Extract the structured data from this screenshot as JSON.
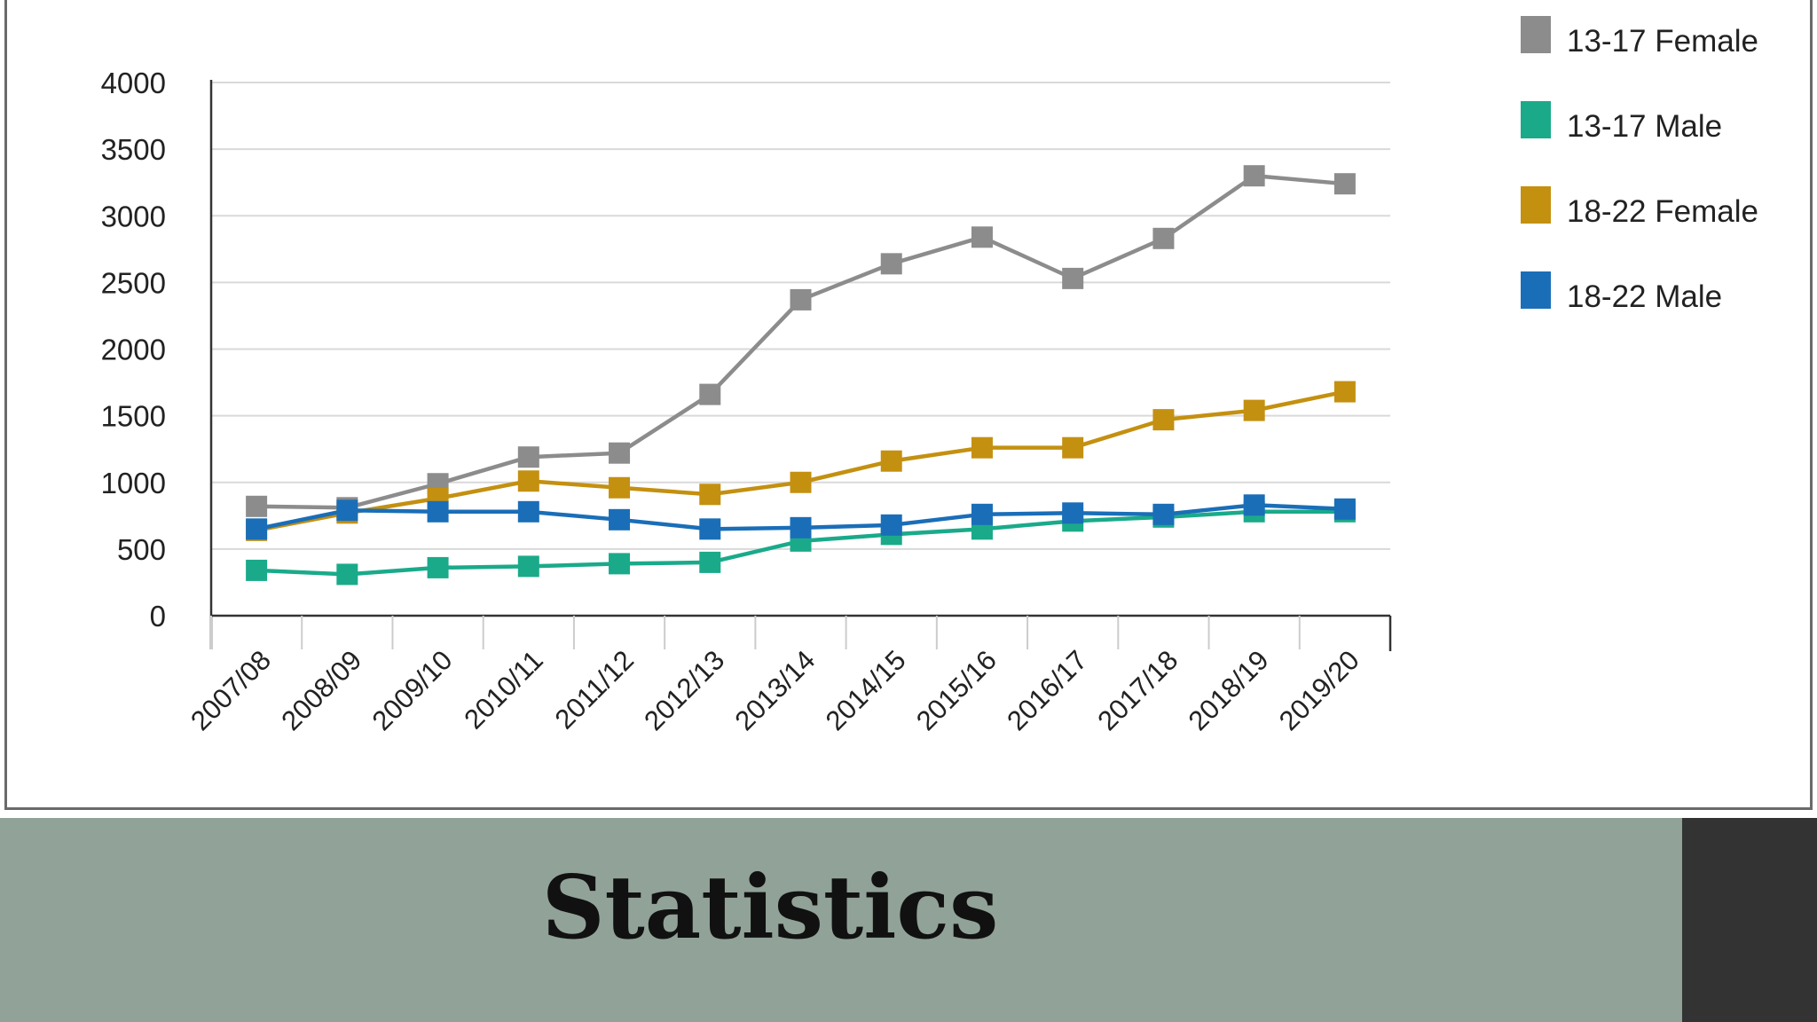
{
  "slide": {
    "title": "Statistics"
  },
  "chart_data": {
    "type": "line",
    "title": "",
    "xlabel": "",
    "ylabel": "",
    "ylim": [
      0,
      4000
    ],
    "yticks": [
      0,
      500,
      1000,
      1500,
      2000,
      2500,
      3000,
      3500,
      4000
    ],
    "categories": [
      "2007/08",
      "2008/09",
      "2009/10",
      "2010/11",
      "2011/12",
      "2012/13",
      "2013/14",
      "2014/15",
      "2015/16",
      "2016/17",
      "2017/18",
      "2018/19",
      "2019/20"
    ],
    "grid": true,
    "legend": "right",
    "series": [
      {
        "name": "13-17 Female",
        "color": "#8c8c8c",
        "values": [
          820,
          810,
          990,
          1190,
          1220,
          1660,
          2370,
          2640,
          2840,
          2530,
          2830,
          3300,
          3240
        ]
      },
      {
        "name": "13-17 Male",
        "color": "#1aaa8a",
        "values": [
          340,
          310,
          360,
          370,
          390,
          400,
          560,
          610,
          650,
          710,
          740,
          780,
          780
        ]
      },
      {
        "name": "18-22 Female",
        "color": "#c49010",
        "values": [
          640,
          770,
          880,
          1010,
          960,
          910,
          1000,
          1160,
          1260,
          1260,
          1470,
          1540,
          1680
        ]
      },
      {
        "name": "18-22 Male",
        "color": "#1a6eb8",
        "values": [
          650,
          790,
          780,
          780,
          720,
          650,
          660,
          680,
          760,
          770,
          760,
          830,
          800
        ]
      }
    ]
  }
}
